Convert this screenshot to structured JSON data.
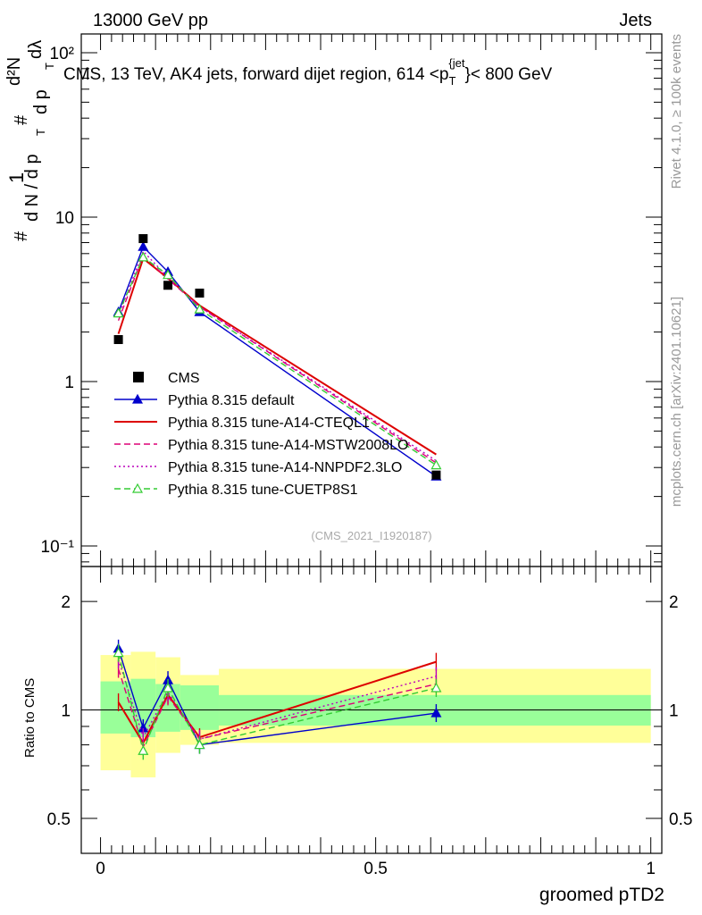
{
  "header": {
    "energy_label": "13000 GeV pp",
    "category_label": "Jets"
  },
  "side_labels": {
    "rivet": "Rivet 4.1.0, ≥ 100k events",
    "mcplots": "mcplots.cern.ch [arXiv:2401.10621]"
  },
  "chart_data": [
    {
      "type": "line",
      "title": "CMS, 13 TeV, AK4 jets, forward dijet region, 614 <p_T^{jet}< 800 GeV",
      "title_parts": {
        "prefix": "CMS, 13 TeV, AK4 jets, forward dijet region, 614 <p",
        "sub": "T",
        "sup": "{jet",
        "suffix": "}< 800 GeV"
      },
      "ylabel": "1/dN/dp_T  d²N/dp_T dλ",
      "ylabel_parts": {
        "hash": "#",
        "one": "1",
        "dn_dp": "d N / d p",
        "t": "T",
        "d2n": "d²N",
        "dp_dl": "d p",
        "dl": "dλ"
      },
      "yscale": "log",
      "ylim": [
        0.075,
        130
      ],
      "xlim": [
        -0.035,
        1.02
      ],
      "ytick_labels": [
        "10⁻¹",
        "1",
        "10",
        "10²"
      ],
      "ytick_values": [
        0.1,
        1,
        10,
        100
      ],
      "watermark": "(CMS_2021_I1920187)",
      "legend_position": "lower-left",
      "x": [
        0.0325,
        0.0775,
        0.1225,
        0.18,
        0.61
      ],
      "data": {
        "name": "CMS",
        "values": [
          1.8,
          7.4,
          3.85,
          3.45,
          0.27
        ]
      },
      "series": [
        {
          "name": "Pythia 8.315 default",
          "color": "#0000cc",
          "style": "solid",
          "marker": "triangle",
          "values": [
            2.65,
            6.6,
            4.65,
            2.65,
            0.265
          ]
        },
        {
          "name": "Pythia 8.315 tune-A14-CTEQL1",
          "color": "#dd0000",
          "style": "solid",
          "marker": "none",
          "values": [
            1.95,
            5.6,
            4.25,
            2.9,
            0.36
          ]
        },
        {
          "name": "Pythia 8.315 tune-A14-MSTW2008LO",
          "color": "#dd0077",
          "style": "dashed",
          "marker": "none",
          "values": [
            2.35,
            5.85,
            4.2,
            2.85,
            0.32
          ]
        },
        {
          "name": "Pythia 8.315 tune-A14-NNPDF2.3LO",
          "color": "#bb00bb",
          "style": "dotted",
          "marker": "none",
          "values": [
            2.5,
            6.2,
            4.3,
            2.85,
            0.33
          ]
        },
        {
          "name": "Pythia 8.315 tune-CUETP8S1",
          "color": "#33cc33",
          "style": "dashed",
          "marker": "open-triangle",
          "values": [
            2.6,
            5.7,
            4.45,
            2.75,
            0.31
          ]
        }
      ]
    },
    {
      "type": "line",
      "ylabel": "Ratio to CMS",
      "xlabel": "groomed pTD2",
      "yscale": "log",
      "ylim": [
        0.4,
        2.5
      ],
      "xlim": [
        -0.035,
        1.02
      ],
      "ytick_labels": [
        "0.5",
        "1",
        "2"
      ],
      "ytick_values": [
        0.5,
        1,
        2
      ],
      "xtick_labels": [
        "0",
        "0.5",
        "1"
      ],
      "xtick_values": [
        0,
        0.5,
        1
      ],
      "bands": [
        {
          "x0": 0.0,
          "x1": 0.055,
          "inner": [
            0.86,
            1.2
          ],
          "outer": [
            0.68,
            1.42
          ]
        },
        {
          "x0": 0.055,
          "x1": 0.1,
          "inner": [
            0.84,
            1.22
          ],
          "outer": [
            0.65,
            1.45
          ]
        },
        {
          "x0": 0.1,
          "x1": 0.145,
          "inner": [
            0.87,
            1.18
          ],
          "outer": [
            0.76,
            1.4
          ]
        },
        {
          "x0": 0.145,
          "x1": 0.215,
          "inner": [
            0.88,
            1.17
          ],
          "outer": [
            0.8,
            1.25
          ]
        },
        {
          "x0": 0.215,
          "x1": 1.0,
          "inner": [
            0.905,
            1.1
          ],
          "outer": [
            0.81,
            1.3
          ]
        }
      ],
      "series": [
        {
          "name": "Pythia 8.315 default",
          "color": "#0000cc",
          "style": "solid",
          "marker": "triangle",
          "values": [
            1.48,
            0.89,
            1.21,
            0.8,
            0.98
          ]
        },
        {
          "name": "Pythia 8.315 tune-A14-CTEQL1",
          "color": "#dd0000",
          "style": "solid",
          "marker": "none",
          "values": [
            1.05,
            0.81,
            1.1,
            0.84,
            1.36
          ]
        },
        {
          "name": "Pythia 8.315 tune-A14-MSTW2008LO",
          "color": "#dd0077",
          "style": "dashed",
          "marker": "none",
          "values": [
            1.3,
            0.79,
            1.09,
            0.83,
            1.18
          ]
        },
        {
          "name": "Pythia 8.315 tune-A14-NNPDF2.3LO",
          "color": "#bb00bb",
          "style": "dotted",
          "marker": "none",
          "values": [
            1.38,
            0.84,
            1.12,
            0.83,
            1.24
          ]
        },
        {
          "name": "Pythia 8.315 tune-CUETP8S1",
          "color": "#33cc33",
          "style": "dashed",
          "marker": "open-triangle",
          "values": [
            1.44,
            0.77,
            1.15,
            0.8,
            1.15
          ]
        }
      ]
    }
  ]
}
